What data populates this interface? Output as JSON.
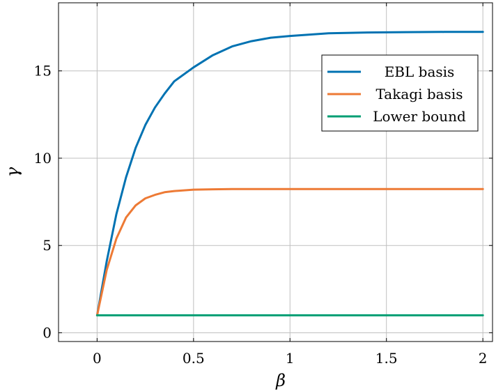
{
  "chart_data": {
    "type": "line",
    "xlabel": "β",
    "ylabel": "γ",
    "xlim": [
      -0.2,
      2.05
    ],
    "ylim": [
      -0.5,
      18.9
    ],
    "xticks": [
      0,
      0.5,
      1,
      1.5,
      2
    ],
    "xtick_labels": [
      "0",
      "0.5",
      "1",
      "1.5",
      "2"
    ],
    "yticks": [
      0,
      5,
      10,
      15
    ],
    "ytick_labels": [
      "0",
      "5",
      "10",
      "15"
    ],
    "grid": true,
    "legend_position": "top-right",
    "x": [
      0,
      0.05,
      0.1,
      0.15,
      0.2,
      0.25,
      0.3,
      0.35,
      0.4,
      0.5,
      0.6,
      0.7,
      0.8,
      0.9,
      1.0,
      1.2,
      1.4,
      1.6,
      1.8,
      2.0
    ],
    "series": [
      {
        "name": "EBL basis",
        "color": "#0072b2",
        "values": [
          1.0,
          4.1,
          6.8,
          8.9,
          10.6,
          11.9,
          12.9,
          13.7,
          14.4,
          15.2,
          15.9,
          16.4,
          16.7,
          16.9,
          17.0,
          17.15,
          17.2,
          17.22,
          17.23,
          17.23
        ]
      },
      {
        "name": "Takagi basis",
        "color": "#ed7a35",
        "values": [
          1.0,
          3.6,
          5.4,
          6.6,
          7.3,
          7.7,
          7.9,
          8.05,
          8.12,
          8.2,
          8.22,
          8.23,
          8.23,
          8.23,
          8.23,
          8.23,
          8.23,
          8.23,
          8.23,
          8.23
        ]
      },
      {
        "name": "Lower bound",
        "color": "#009e73",
        "values": [
          1,
          1,
          1,
          1,
          1,
          1,
          1,
          1,
          1,
          1,
          1,
          1,
          1,
          1,
          1,
          1,
          1,
          1,
          1,
          1
        ]
      }
    ]
  }
}
